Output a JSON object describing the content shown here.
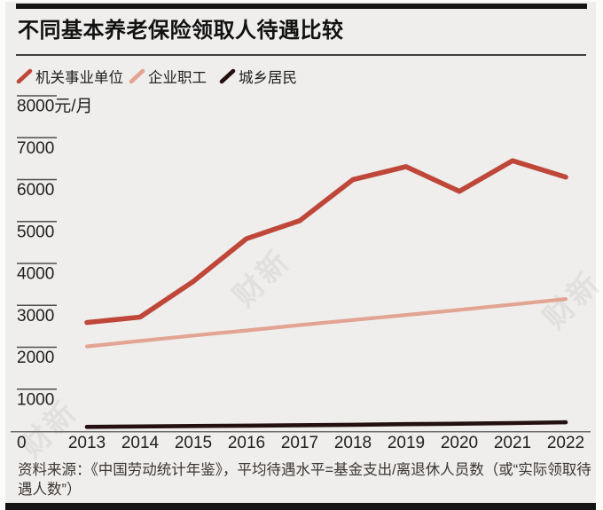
{
  "title": "不同基本养老保险领取人待遇比较",
  "legend": [
    {
      "label": "机关事业单位",
      "color": "#bf4739"
    },
    {
      "label": "企业职工",
      "color": "#e2a493"
    },
    {
      "label": "城乡居民",
      "color": "#241011"
    }
  ],
  "watermark": "财新",
  "source_note": "资料来源：《中国劳动统计年鉴》，平均待遇水平=基金支出/离退休人员数（或“实际领取待遇人数”）",
  "chart_data": {
    "type": "line",
    "x": [
      2013,
      2014,
      2015,
      2016,
      2017,
      2018,
      2019,
      2020,
      2021,
      2022
    ],
    "series": [
      {
        "name": "机关事业单位",
        "color": "#bf4739",
        "values": [
          2590,
          2720,
          3570,
          4590,
          5020,
          6000,
          6310,
          5720,
          6450,
          6060
        ]
      },
      {
        "name": "企业职工",
        "color": "#e2a493",
        "values": [
          2020,
          2150,
          2280,
          2400,
          2530,
          2650,
          2770,
          2890,
          3020,
          3150
        ]
      },
      {
        "name": "城乡居民",
        "color": "#241011",
        "values": [
          100,
          110,
          120,
          130,
          140,
          150,
          165,
          175,
          190,
          210
        ]
      }
    ],
    "ytick_top_label": "8000元/月",
    "yticks": [
      0,
      1000,
      2000,
      3000,
      4000,
      5000,
      6000,
      7000,
      8000
    ],
    "ylim": [
      0,
      8000
    ],
    "xzero_label": "0",
    "grid": false,
    "legend_position": "top-left",
    "unit": "元/月"
  }
}
